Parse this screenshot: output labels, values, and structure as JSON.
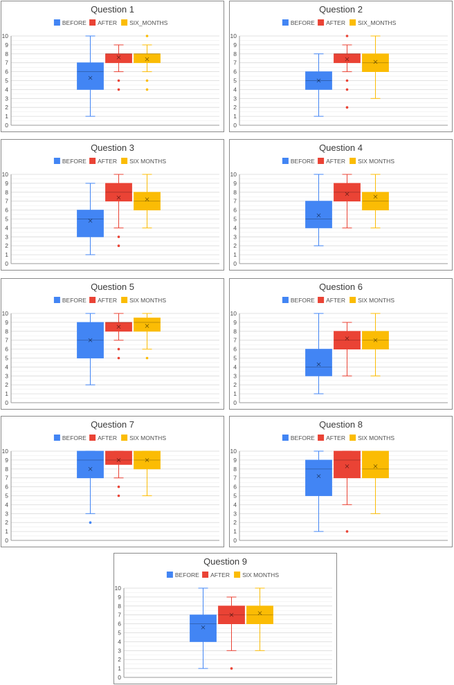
{
  "colors": {
    "before": "#4285f4",
    "after": "#ea4335",
    "six_months": "#fbbc04"
  },
  "chart_data": [
    {
      "type": "box",
      "title": "Question 1",
      "ylim": [
        0,
        10
      ],
      "yticks": [
        0,
        1,
        2,
        3,
        4,
        5,
        6,
        7,
        8,
        9,
        10
      ],
      "grid": true,
      "legend": "top-center",
      "series": [
        {
          "name": "BEFORE",
          "min": 1,
          "q1": 4,
          "median": 6,
          "q3": 7,
          "max": 10,
          "mean": 5.3,
          "outliers": []
        },
        {
          "name": "AFTER",
          "min": 6,
          "q1": 7,
          "median": 8,
          "q3": 8,
          "max": 9,
          "mean": 7.6,
          "outliers": [
            5,
            4
          ]
        },
        {
          "name": "SIX_MONTHS",
          "min": 6,
          "q1": 7,
          "median": 8,
          "q3": 8,
          "max": 9,
          "mean": 7.4,
          "outliers": [
            10,
            5,
            4
          ]
        }
      ]
    },
    {
      "type": "box",
      "title": "Question 2",
      "ylim": [
        0,
        10
      ],
      "yticks": [
        0,
        1,
        2,
        3,
        4,
        5,
        6,
        7,
        8,
        9,
        10
      ],
      "grid": true,
      "legend": "top-center",
      "series": [
        {
          "name": "BEFORE",
          "min": 1,
          "q1": 4,
          "median": 5,
          "q3": 6,
          "max": 8,
          "mean": 5.0,
          "outliers": []
        },
        {
          "name": "AFTER",
          "min": 6,
          "q1": 7,
          "median": 8,
          "q3": 8,
          "max": 9,
          "mean": 7.4,
          "outliers": [
            10,
            5,
            4,
            2
          ]
        },
        {
          "name": "SIX_MONTHS",
          "min": 3,
          "q1": 6,
          "median": 7,
          "q3": 8,
          "max": 10,
          "mean": 7.1,
          "outliers": []
        }
      ]
    },
    {
      "type": "box",
      "title": "Question 3",
      "ylim": [
        0,
        10
      ],
      "yticks": [
        0,
        1,
        2,
        3,
        4,
        5,
        6,
        7,
        8,
        9,
        10
      ],
      "grid": true,
      "legend": "top-center",
      "series": [
        {
          "name": "BEFORE",
          "min": 1,
          "q1": 3,
          "median": 5,
          "q3": 6,
          "max": 9,
          "mean": 4.8,
          "outliers": []
        },
        {
          "name": "AFTER",
          "min": 4,
          "q1": 7,
          "median": 8,
          "q3": 9,
          "max": 10,
          "mean": 7.4,
          "outliers": [
            3,
            2
          ]
        },
        {
          "name": "SIX MONTHS",
          "min": 4,
          "q1": 6,
          "median": 7,
          "q3": 8,
          "max": 10,
          "mean": 7.2,
          "outliers": []
        }
      ]
    },
    {
      "type": "box",
      "title": "Question 4",
      "ylim": [
        0,
        10
      ],
      "yticks": [
        0,
        1,
        2,
        3,
        4,
        5,
        6,
        7,
        8,
        9,
        10
      ],
      "grid": true,
      "legend": "top-center",
      "series": [
        {
          "name": "BEFORE",
          "min": 2,
          "q1": 4,
          "median": 5,
          "q3": 7,
          "max": 10,
          "mean": 5.4,
          "outliers": []
        },
        {
          "name": "AFTER",
          "min": 4,
          "q1": 7,
          "median": 8,
          "q3": 9,
          "max": 10,
          "mean": 7.8,
          "outliers": []
        },
        {
          "name": "SIX MONTHS",
          "min": 4,
          "q1": 6,
          "median": 7,
          "q3": 8,
          "max": 10,
          "mean": 7.5,
          "outliers": []
        }
      ]
    },
    {
      "type": "box",
      "title": "Question 5",
      "ylim": [
        0,
        10
      ],
      "yticks": [
        0,
        1,
        2,
        3,
        4,
        5,
        6,
        7,
        8,
        9,
        10
      ],
      "grid": true,
      "legend": "top-center",
      "series": [
        {
          "name": "BEFORE",
          "min": 2,
          "q1": 5,
          "median": 7,
          "q3": 9,
          "max": 10,
          "mean": 7.0,
          "outliers": []
        },
        {
          "name": "AFTER",
          "min": 7,
          "q1": 8,
          "median": 9,
          "q3": 9,
          "max": 10,
          "mean": 8.5,
          "outliers": [
            6,
            5
          ]
        },
        {
          "name": "SIX MONTHS",
          "min": 6,
          "q1": 8,
          "median": 9,
          "q3": 9.5,
          "max": 10,
          "mean": 8.6,
          "outliers": [
            5
          ]
        }
      ]
    },
    {
      "type": "box",
      "title": "Question 6",
      "ylim": [
        0,
        10
      ],
      "yticks": [
        0,
        1,
        2,
        3,
        4,
        5,
        6,
        7,
        8,
        9,
        10
      ],
      "grid": true,
      "legend": "top-center",
      "series": [
        {
          "name": "BEFORE",
          "min": 1,
          "q1": 3,
          "median": 4,
          "q3": 6,
          "max": 10,
          "mean": 4.3,
          "outliers": []
        },
        {
          "name": "AFTER",
          "min": 3,
          "q1": 6,
          "median": 7,
          "q3": 8,
          "max": 9,
          "mean": 7.2,
          "outliers": []
        },
        {
          "name": "SIX MONTHS",
          "min": 3,
          "q1": 6,
          "median": 7,
          "q3": 8,
          "max": 10,
          "mean": 7.0,
          "outliers": []
        }
      ]
    },
    {
      "type": "box",
      "title": "Question 7",
      "ylim": [
        0,
        10
      ],
      "yticks": [
        0,
        1,
        2,
        3,
        4,
        5,
        6,
        7,
        8,
        9,
        10
      ],
      "grid": true,
      "legend": "top-center",
      "series": [
        {
          "name": "BEFORE",
          "min": 3,
          "q1": 7,
          "median": 9,
          "q3": 10,
          "max": 10,
          "mean": 8.0,
          "outliers": [
            2
          ]
        },
        {
          "name": "AFTER",
          "min": 7,
          "q1": 8.5,
          "median": 9,
          "q3": 10,
          "max": 10,
          "mean": 9.0,
          "outliers": [
            6,
            5
          ]
        },
        {
          "name": "SIX MONTHS",
          "min": 5,
          "q1": 8,
          "median": 9,
          "q3": 10,
          "max": 10,
          "mean": 9.0,
          "outliers": []
        }
      ]
    },
    {
      "type": "box",
      "title": "Question 8",
      "ylim": [
        0,
        10
      ],
      "yticks": [
        0,
        1,
        2,
        3,
        4,
        5,
        6,
        7,
        8,
        9,
        10
      ],
      "grid": true,
      "legend": "top-center",
      "series": [
        {
          "name": "BEFORE",
          "min": 1,
          "q1": 5,
          "median": 8,
          "q3": 9,
          "max": 10,
          "mean": 7.2,
          "outliers": []
        },
        {
          "name": "AFTER",
          "min": 4,
          "q1": 7,
          "median": 9,
          "q3": 10,
          "max": 10,
          "mean": 8.3,
          "outliers": [
            1
          ]
        },
        {
          "name": "SIX MONTHS",
          "min": 3,
          "q1": 7,
          "median": 8,
          "q3": 10,
          "max": 10,
          "mean": 8.3,
          "outliers": []
        }
      ]
    },
    {
      "type": "box",
      "title": "Question 9",
      "ylim": [
        0,
        10
      ],
      "yticks": [
        0,
        1,
        2,
        3,
        4,
        5,
        6,
        7,
        8,
        9,
        10
      ],
      "grid": true,
      "legend": "top-center",
      "series": [
        {
          "name": "BEFORE",
          "min": 1,
          "q1": 4,
          "median": 6,
          "q3": 7,
          "max": 10,
          "mean": 5.6,
          "outliers": []
        },
        {
          "name": "AFTER",
          "min": 3,
          "q1": 6,
          "median": 7,
          "q3": 8,
          "max": 9,
          "mean": 7.0,
          "outliers": [
            1
          ]
        },
        {
          "name": "SIX MONTHS",
          "min": 3,
          "q1": 6,
          "median": 7,
          "q3": 8,
          "max": 10,
          "mean": 7.2,
          "outliers": []
        }
      ]
    }
  ]
}
